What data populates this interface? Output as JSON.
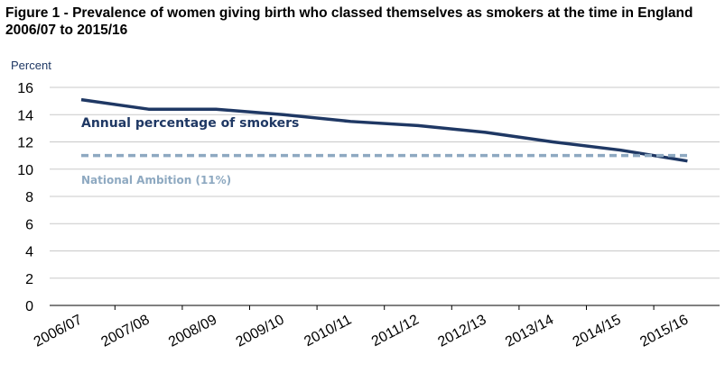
{
  "figure": {
    "title": "Figure 1 - Prevalence of women giving birth who classed themselves as smokers at the time in England 2006/07 to 2015/16"
  },
  "chart_data": {
    "type": "line",
    "ylabel": "Percent",
    "ylim": [
      0,
      16
    ],
    "yticks": [
      "0",
      "2",
      "4",
      "6",
      "8",
      "10",
      "12",
      "14",
      "16"
    ],
    "grid": true,
    "categories": [
      "2006/07",
      "2007/08",
      "2008/09",
      "2009/10",
      "2010/11",
      "2011/12",
      "2012/13",
      "2013/14",
      "2014/15",
      "2015/16"
    ],
    "series": [
      {
        "name": "Annual percentage of smokers",
        "color": "#1f3864",
        "style": "solid",
        "values": [
          15.1,
          14.4,
          14.4,
          14.0,
          13.5,
          13.2,
          12.7,
          12.0,
          11.4,
          10.6
        ]
      },
      {
        "name": "National Ambition (11%)",
        "color": "#8ea9c1",
        "style": "dashed",
        "values": [
          11,
          11,
          11,
          11,
          11,
          11,
          11,
          11,
          11,
          11
        ]
      }
    ]
  }
}
